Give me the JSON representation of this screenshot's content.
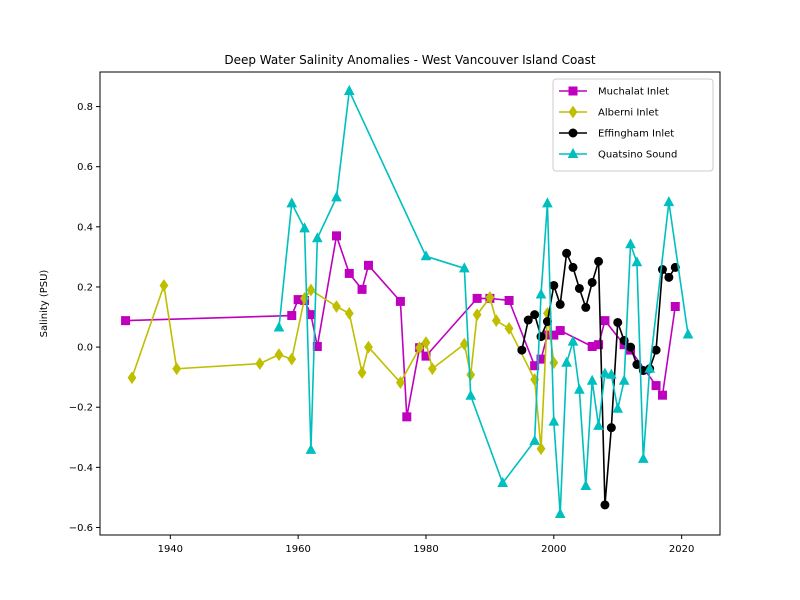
{
  "chart_data": {
    "type": "line",
    "title": "Deep Water Salinity Anomalies - West Vancouver Island Coast",
    "xlabel": "",
    "ylabel": "Salinity (PSU)",
    "xlim": [
      1929,
      2026
    ],
    "ylim": [
      -0.625,
      0.915
    ],
    "xticks": [
      1940,
      1960,
      1980,
      2000,
      2020
    ],
    "yticks": [
      -0.6,
      -0.4,
      -0.2,
      0.0,
      0.2,
      0.4,
      0.6,
      0.8
    ],
    "grid": false,
    "legend_position": "top-right",
    "series": [
      {
        "name": "Muchalat Inlet",
        "color": "#bf00bf",
        "marker": "square",
        "x": [
          1933,
          1959,
          1960,
          1961,
          1962,
          1963,
          1966,
          1968,
          1970,
          1971,
          1976,
          1977,
          1979,
          1980,
          1988,
          1990,
          1993,
          1997,
          1998,
          1999,
          2000,
          2001,
          2006,
          2007,
          2008,
          2011,
          2012,
          2016,
          2017,
          2019
        ],
        "y": [
          0.088,
          0.105,
          0.158,
          0.155,
          0.108,
          0.002,
          0.37,
          0.245,
          0.192,
          0.272,
          0.152,
          -0.232,
          -0.002,
          -0.03,
          0.162,
          0.162,
          0.155,
          -0.062,
          -0.04,
          0.04,
          0.04,
          0.055,
          0.002,
          0.008,
          0.088,
          0.008,
          -0.01,
          -0.128,
          -0.16,
          0.135
        ]
      },
      {
        "name": "Alberni Inlet",
        "color": "#bfbf00",
        "marker": "diamond",
        "x": [
          1934,
          1939,
          1941,
          1954,
          1957,
          1959,
          1961,
          1962,
          1966,
          1968,
          1970,
          1971,
          1976,
          1979,
          1980,
          1981,
          1986,
          1987,
          1988,
          1990,
          1991,
          1993,
          1997,
          1998,
          1999,
          2000
        ],
        "y": [
          -0.102,
          0.205,
          -0.072,
          -0.055,
          -0.025,
          -0.04,
          0.162,
          0.19,
          0.135,
          0.112,
          -0.085,
          -0.0,
          -0.118,
          -0.002,
          0.015,
          -0.072,
          0.01,
          -0.092,
          0.108,
          0.165,
          0.088,
          0.062,
          -0.108,
          -0.338,
          0.112,
          -0.052
        ]
      },
      {
        "name": "Effingham Inlet",
        "color": "#000000",
        "marker": "circle",
        "x": [
          1995,
          1996,
          1997,
          1998,
          1999,
          2000,
          2001,
          2002,
          2003,
          2004,
          2005,
          2006,
          2007,
          2008,
          2009,
          2010,
          2011,
          2012,
          2013,
          2014,
          2015,
          2016,
          2017,
          2018,
          2019
        ],
        "y": [
          -0.01,
          0.09,
          0.108,
          0.035,
          0.085,
          0.205,
          0.142,
          0.312,
          0.265,
          0.195,
          0.132,
          0.215,
          0.285,
          -0.525,
          -0.268,
          0.082,
          0.022,
          0.0,
          -0.058,
          -0.078,
          -0.072,
          -0.01,
          0.258,
          0.232,
          0.265
        ]
      },
      {
        "name": "Quatsino Sound",
        "color": "#00bfbf",
        "marker": "triangle",
        "x": [
          1957,
          1959,
          1961,
          1962,
          1963,
          1966,
          1968,
          1980,
          1986,
          1987,
          1992,
          1997,
          1998,
          1999,
          2000,
          2001,
          2002,
          2003,
          2004,
          2005,
          2006,
          2007,
          2008,
          2009,
          2010,
          2011,
          2012,
          2013,
          2014,
          2015,
          2018,
          2021
        ],
        "y": [
          0.065,
          0.478,
          0.395,
          -0.342,
          0.362,
          0.498,
          0.852,
          0.302,
          0.262,
          -0.162,
          -0.452,
          -0.312,
          0.175,
          0.478,
          -0.248,
          -0.555,
          -0.052,
          0.018,
          -0.142,
          -0.462,
          -0.112,
          -0.262,
          -0.088,
          -0.092,
          -0.205,
          -0.112,
          0.342,
          0.282,
          -0.372,
          -0.072,
          0.482,
          0.042
        ]
      }
    ]
  }
}
